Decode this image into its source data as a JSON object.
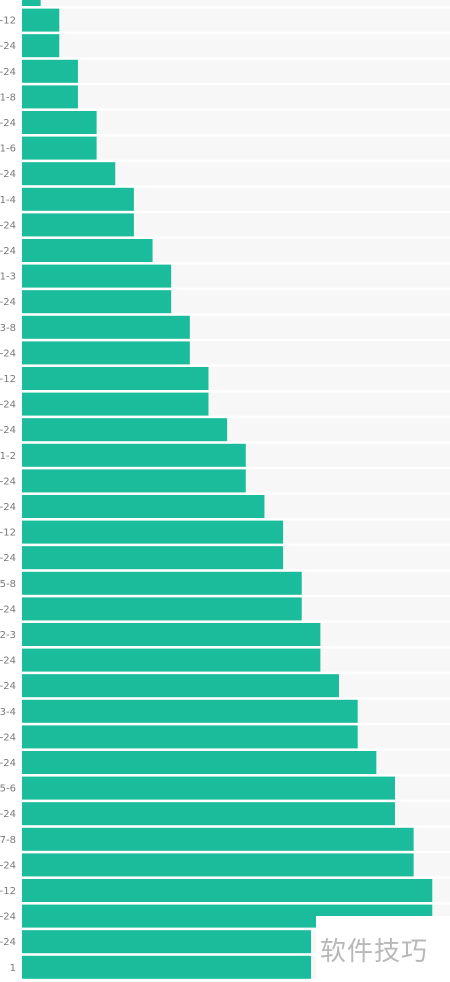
{
  "chart_data": {
    "type": "bar",
    "orientation": "horizontal",
    "bar_color": "#1abc9c",
    "row_band_color": "#f7f7f7",
    "tick_color": "#7a7a7a",
    "categories": [
      "",
      "-12",
      "-24",
      "-24",
      "1-8",
      "-24",
      "1-6",
      "-24",
      "1-4",
      "-24",
      "-24",
      "1-3",
      "-24",
      "3-8",
      "-24",
      "-12",
      "-24",
      "-24",
      "1-2",
      "-24",
      "-24",
      "-12",
      "-24",
      "5-8",
      "-24",
      "2-3",
      "-24",
      "-24",
      "3-4",
      "-24",
      "-24",
      "5-6",
      "-24",
      "7-8",
      "-24",
      "-12",
      "-24",
      "-24",
      "1"
    ],
    "values": [
      1,
      2,
      2,
      3,
      3,
      4,
      4,
      5,
      6,
      6,
      7,
      8,
      8,
      9,
      9,
      10,
      10,
      11,
      12,
      12,
      13,
      14,
      14,
      15,
      15,
      16,
      16,
      17,
      18,
      18,
      19,
      20,
      20,
      21,
      21,
      22,
      22,
      15.5,
      15.5
    ],
    "xlim": [
      0,
      22.2
    ]
  },
  "watermark": {
    "text": "软件技巧"
  }
}
